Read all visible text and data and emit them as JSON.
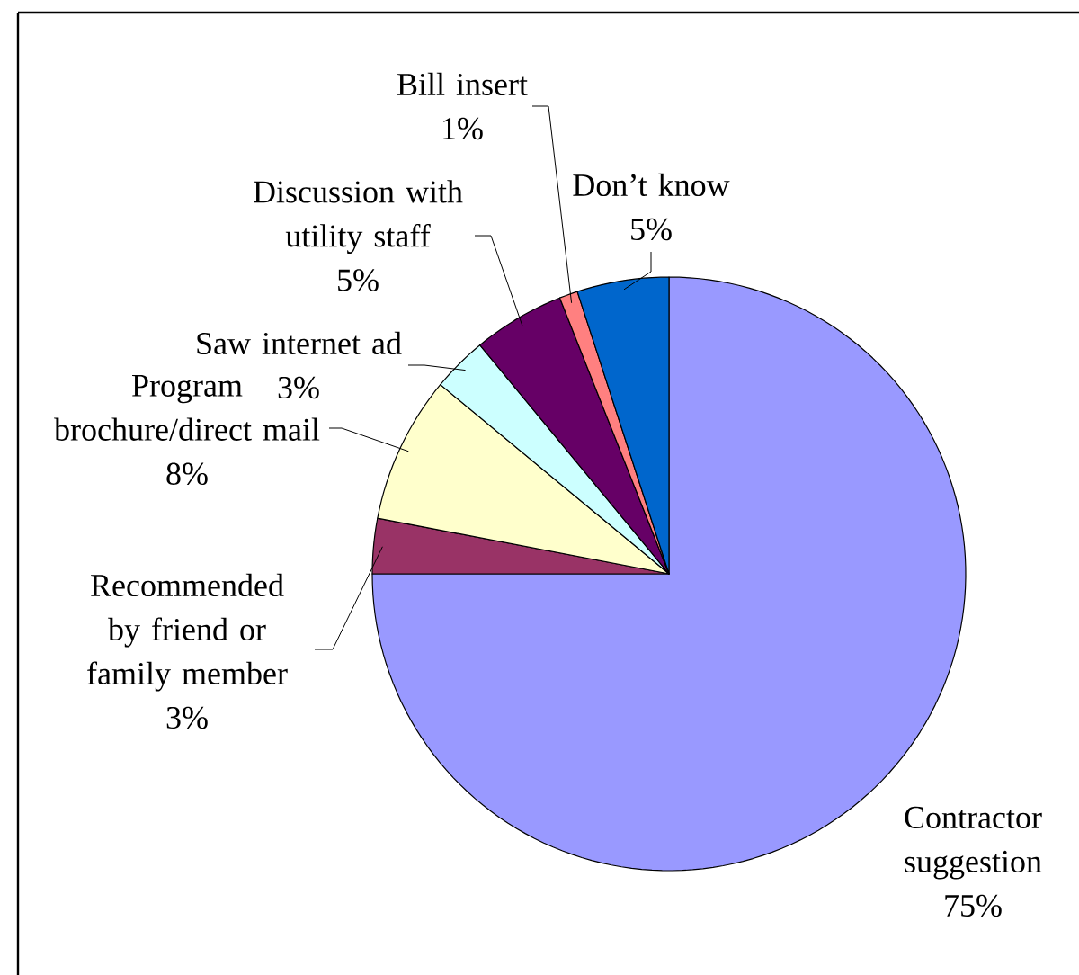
{
  "chart_data": {
    "type": "pie",
    "categories": [
      "Contractor suggestion",
      "Recommended by friend or family member",
      "Program brochure/direct mail",
      "Saw internet ad",
      "Discussion with utility staff",
      "Bill insert",
      "Don’t know"
    ],
    "values": [
      75,
      3,
      8,
      3,
      5,
      1,
      5
    ],
    "value_labels": [
      "75%",
      "3%",
      "8%",
      "3%",
      "5%",
      "1%",
      "5%"
    ],
    "colors": [
      "#9999ff",
      "#993366",
      "#ffffcc",
      "#ccffff",
      "#660066",
      "#ff8080",
      "#0066cc"
    ]
  }
}
